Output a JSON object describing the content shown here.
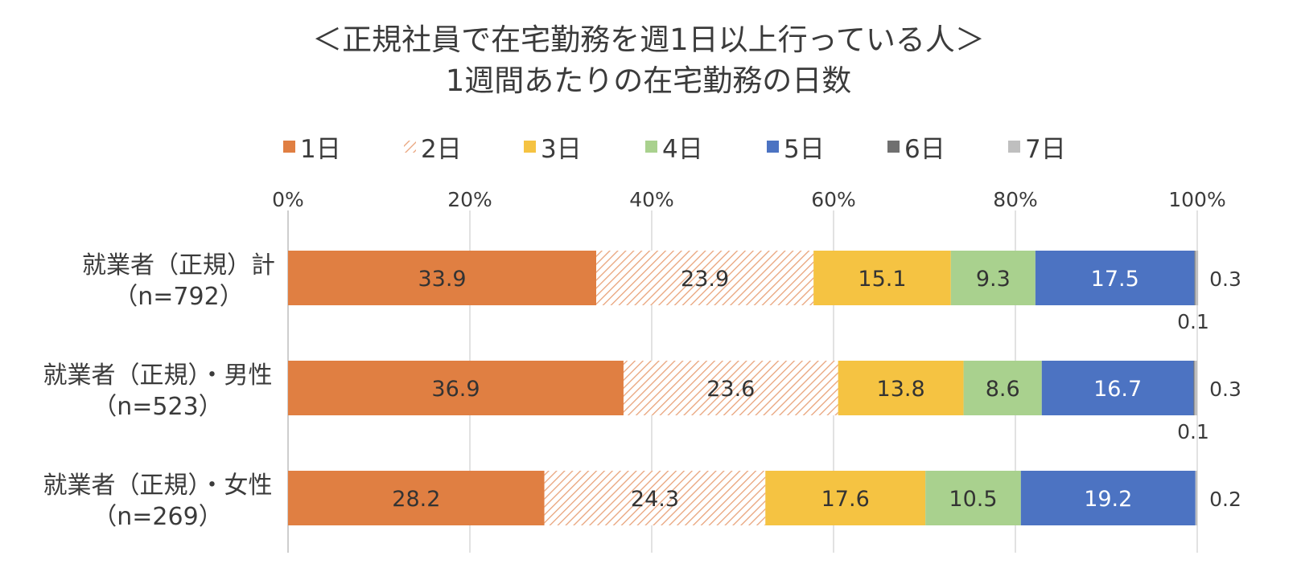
{
  "chart_data": {
    "type": "bar",
    "orientation": "horizontal",
    "stacked": "percent",
    "title": "＜正規社員で在宅勤務を週1日以上行っている人＞",
    "subtitle": "1週間あたりの在宅勤務の日数",
    "categories": [
      {
        "label": "就業者（正規）計",
        "n_label": "（n=792）"
      },
      {
        "label": "就業者（正規）・男性",
        "n_label": "（n=523）"
      },
      {
        "label": "就業者（正規）・女性",
        "n_label": "（n=269）"
      }
    ],
    "x_ticks": [
      "0%",
      "20%",
      "40%",
      "60%",
      "80%",
      "100%"
    ],
    "xlim": [
      0,
      100
    ],
    "grid": true,
    "legend_position": "top",
    "series": [
      {
        "name": "1日",
        "color": "#E07F42",
        "pattern": "solid",
        "label_color": "#333333",
        "values": [
          33.9,
          36.9,
          28.2
        ]
      },
      {
        "name": "2日",
        "color": "#E9A37A",
        "pattern": "hatched",
        "label_color": "#333333",
        "values": [
          23.9,
          23.6,
          24.3
        ]
      },
      {
        "name": "3日",
        "color": "#F5C342",
        "pattern": "solid",
        "label_color": "#333333",
        "values": [
          15.1,
          13.8,
          17.6
        ]
      },
      {
        "name": "4日",
        "color": "#A9D18E",
        "pattern": "solid",
        "label_color": "#333333",
        "values": [
          9.3,
          8.6,
          10.5
        ]
      },
      {
        "name": "5日",
        "color": "#4C73C2",
        "pattern": "solid",
        "label_color": "#ffffff",
        "values": [
          17.5,
          16.7,
          19.2
        ]
      },
      {
        "name": "6日",
        "color": "#707070",
        "pattern": "solid",
        "label_color": "#333333",
        "values": [
          0.1,
          0.1,
          0.0
        ]
      },
      {
        "name": "7日",
        "color": "#BFBFBF",
        "pattern": "solid",
        "label_color": "#333333",
        "values": [
          0.3,
          0.3,
          0.2
        ]
      }
    ],
    "inline_labels": [
      [
        "33.9",
        "23.9",
        "15.1",
        "9.3",
        "17.5"
      ],
      [
        "36.9",
        "23.6",
        "13.8",
        "8.6",
        "16.7"
      ],
      [
        "28.2",
        "24.3",
        "17.6",
        "10.5",
        "19.2"
      ]
    ],
    "right_labels": [
      "0.3",
      "0.3",
      "0.2"
    ],
    "below_labels": [
      "0.1",
      "0.1",
      ""
    ]
  }
}
